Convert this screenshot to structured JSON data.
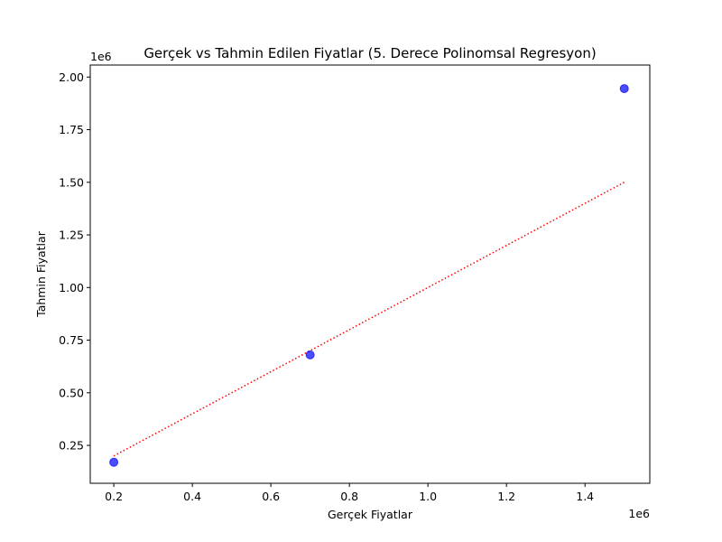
{
  "chart_data": {
    "type": "scatter",
    "title": "Gerçek vs Tahmin Edilen Fiyatlar (5. Derece Polinomsal Regresyon)",
    "xlabel": "Gerçek Fiyatlar",
    "ylabel": "Tahmin Fiyatlar",
    "x_offset_text": "1e6",
    "y_offset_text": "1e6",
    "xlim": [
      140000,
      1565000
    ],
    "ylim": [
      70000,
      2057000
    ],
    "x_ticks": [
      {
        "value": 200000,
        "label": "0.2"
      },
      {
        "value": 400000,
        "label": "0.4"
      },
      {
        "value": 600000,
        "label": "0.6"
      },
      {
        "value": 800000,
        "label": "0.8"
      },
      {
        "value": 1000000,
        "label": "1.0"
      },
      {
        "value": 1200000,
        "label": "1.2"
      },
      {
        "value": 1400000,
        "label": "1.4"
      }
    ],
    "y_ticks": [
      {
        "value": 250000,
        "label": "0.25"
      },
      {
        "value": 500000,
        "label": "0.50"
      },
      {
        "value": 750000,
        "label": "0.75"
      },
      {
        "value": 1000000,
        "label": "1.00"
      },
      {
        "value": 1250000,
        "label": "1.25"
      },
      {
        "value": 1500000,
        "label": "1.50"
      },
      {
        "value": 1750000,
        "label": "1.75"
      },
      {
        "value": 2000000,
        "label": "2.00"
      }
    ],
    "grid": false,
    "series": [
      {
        "kind": "scatter",
        "color": "#0000ff",
        "points": [
          {
            "x": 200000,
            "y": 170000
          },
          {
            "x": 700000,
            "y": 680000
          },
          {
            "x": 1500000,
            "y": 1945000
          }
        ]
      },
      {
        "kind": "line",
        "style": "dotted",
        "color": "#ff0000",
        "points": [
          {
            "x": 200000,
            "y": 200000
          },
          {
            "x": 1500000,
            "y": 1500000
          }
        ]
      }
    ]
  }
}
